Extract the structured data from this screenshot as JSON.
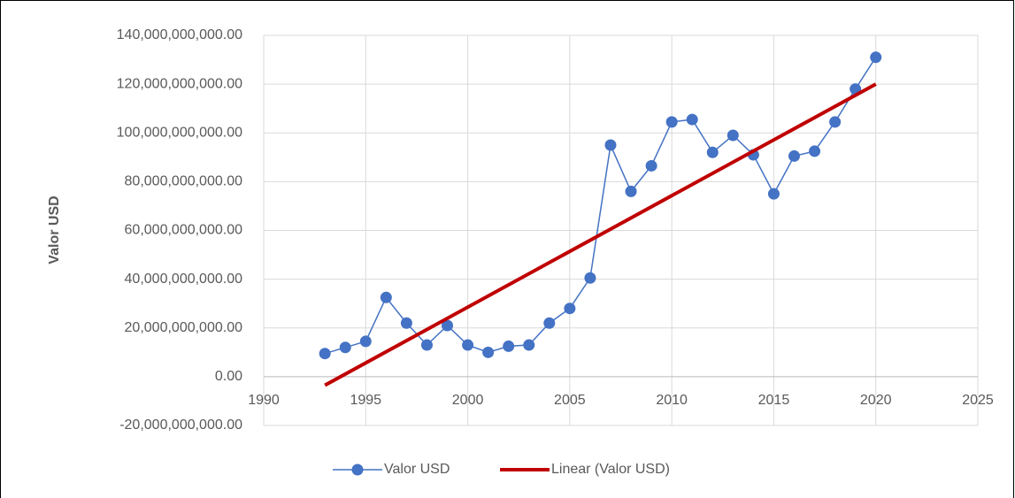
{
  "chart_data": {
    "type": "scatter",
    "y_label": "Valor USD",
    "x": [
      1993,
      1994,
      1995,
      1996,
      1997,
      1998,
      1999,
      2000,
      2001,
      2002,
      2003,
      2004,
      2005,
      2006,
      2007,
      2008,
      2009,
      2010,
      2011,
      2012,
      2013,
      2014,
      2015,
      2016,
      2017,
      2018,
      2019,
      2020
    ],
    "series": [
      {
        "name": "Valor USD",
        "color": "#4472c4",
        "values": [
          9500000000,
          12000000000,
          14500000000,
          32500000000,
          22000000000,
          13000000000,
          21000000000,
          13000000000,
          10000000000,
          12500000000,
          13000000000,
          22000000000,
          28000000000,
          40500000000,
          95000000000,
          76000000000,
          86500000000,
          104500000000,
          105500000000,
          92000000000,
          99000000000,
          91000000000,
          75000000000,
          90500000000,
          92500000000,
          104500000000,
          118000000000,
          131000000000
        ]
      }
    ],
    "trendline": {
      "name": "Linear (Valor USD)",
      "color": "#c00000",
      "x": [
        1993,
        2020
      ],
      "values": [
        -3500000000,
        120000000000
      ]
    },
    "xlim": [
      1990,
      2025
    ],
    "xticks": [
      1990,
      1995,
      2000,
      2005,
      2010,
      2015,
      2020,
      2025
    ],
    "ylim": [
      -20000000000,
      140000000000
    ],
    "yticks": [
      {
        "value": -20000000000,
        "label": "-20,000,000,000.00"
      },
      {
        "value": 0,
        "label": "0.00"
      },
      {
        "value": 20000000000,
        "label": "20,000,000,000.00"
      },
      {
        "value": 40000000000,
        "label": "40,000,000,000.00"
      },
      {
        "value": 60000000000,
        "label": "60,000,000,000.00"
      },
      {
        "value": 80000000000,
        "label": "80,000,000,000.00"
      },
      {
        "value": 100000000000,
        "label": "100,000,000,000.00"
      },
      {
        "value": 120000000000,
        "label": "120,000,000,000.00"
      },
      {
        "value": 140000000000,
        "label": "140,000,000,000.00"
      }
    ],
    "grid": true,
    "legend": "bottom"
  }
}
